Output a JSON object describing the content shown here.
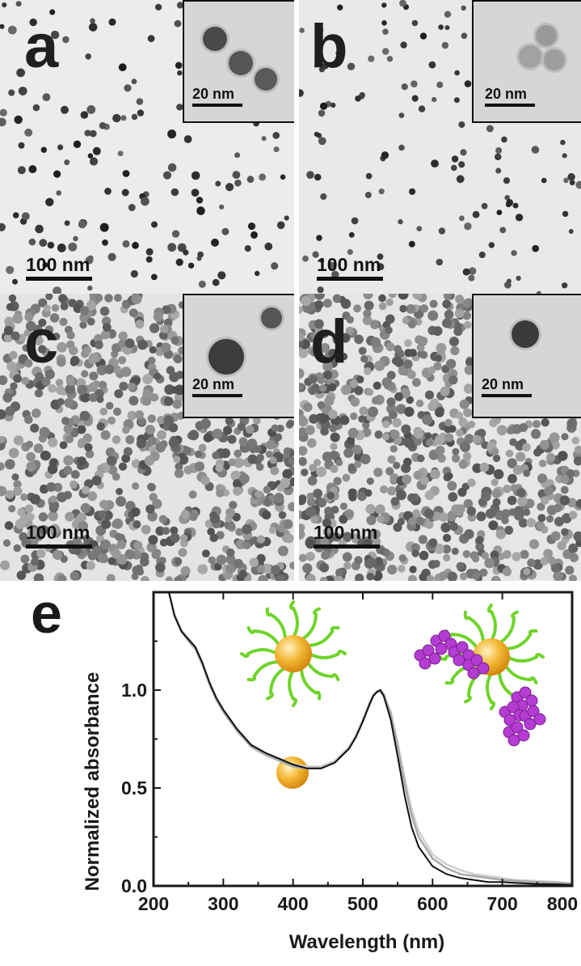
{
  "panels": [
    {
      "letter": "a",
      "scale_label": "100 nm",
      "inset_scale_label": "20 nm"
    },
    {
      "letter": "b",
      "scale_label": "100 nm",
      "inset_scale_label": "20 nm"
    },
    {
      "letter": "c",
      "scale_label": "100 nm",
      "inset_scale_label": "20 nm"
    },
    {
      "letter": "d",
      "scale_label": "100 nm",
      "inset_scale_label": "20 nm"
    }
  ],
  "chart_data": {
    "type": "line",
    "panel_letter": "e",
    "xlabel": "Wavelength (nm)",
    "ylabel": "Normalized absorbance",
    "xlim": [
      200,
      800
    ],
    "ylim": [
      0.0,
      1.5
    ],
    "xticks": [
      200,
      300,
      400,
      500,
      600,
      700,
      800
    ],
    "yticks": [
      0.0,
      0.5,
      1.0
    ],
    "xtick_labels": [
      "200",
      "300",
      "400",
      "500",
      "600",
      "700",
      "800"
    ],
    "ytick_labels": [
      "0.0",
      "0.5",
      "1.0"
    ],
    "grid": false,
    "colors": {
      "series_1": "#111111",
      "series_2": "#a9a9a9",
      "series_3": "#cfcfcf",
      "particle": "#f2b632",
      "ligand": "#6fd42a",
      "protein": "#b43cd2"
    },
    "series": [
      {
        "x": [
          222,
          230,
          240,
          250,
          260,
          270,
          280,
          290,
          300,
          320,
          340,
          360,
          380,
          400,
          420,
          440,
          460,
          480,
          490,
          500,
          510,
          515,
          520,
          525,
          530,
          540,
          550,
          560,
          570,
          580,
          600,
          620,
          640,
          660,
          680,
          700,
          720,
          750,
          780,
          800
        ],
        "y": [
          1.5,
          1.38,
          1.3,
          1.26,
          1.22,
          1.14,
          1.04,
          0.96,
          0.9,
          0.8,
          0.72,
          0.68,
          0.65,
          0.62,
          0.6,
          0.6,
          0.63,
          0.7,
          0.76,
          0.84,
          0.93,
          0.97,
          0.99,
          1.0,
          0.97,
          0.85,
          0.66,
          0.46,
          0.3,
          0.2,
          0.1,
          0.06,
          0.04,
          0.03,
          0.02,
          0.02,
          0.015,
          0.01,
          0.008,
          0.005
        ]
      },
      {
        "x": [
          222,
          230,
          240,
          250,
          260,
          270,
          280,
          290,
          300,
          320,
          340,
          360,
          380,
          400,
          420,
          440,
          460,
          480,
          490,
          500,
          510,
          515,
          520,
          525,
          530,
          540,
          550,
          560,
          570,
          580,
          600,
          620,
          640,
          660,
          680,
          700,
          720,
          750,
          780,
          800
        ],
        "y": [
          1.5,
          1.38,
          1.3,
          1.25,
          1.21,
          1.13,
          1.03,
          0.95,
          0.89,
          0.79,
          0.71,
          0.67,
          0.64,
          0.61,
          0.6,
          0.6,
          0.63,
          0.7,
          0.76,
          0.84,
          0.93,
          0.97,
          0.99,
          1.0,
          0.98,
          0.88,
          0.71,
          0.52,
          0.36,
          0.25,
          0.14,
          0.09,
          0.06,
          0.05,
          0.04,
          0.03,
          0.025,
          0.02,
          0.015,
          0.01
        ]
      },
      {
        "x": [
          222,
          230,
          240,
          250,
          260,
          270,
          280,
          290,
          300,
          320,
          340,
          360,
          380,
          400,
          420,
          440,
          460,
          480,
          490,
          500,
          510,
          515,
          520,
          525,
          530,
          540,
          550,
          560,
          570,
          580,
          600,
          620,
          640,
          660,
          680,
          700,
          720,
          750,
          780,
          800
        ],
        "y": [
          1.5,
          1.39,
          1.31,
          1.26,
          1.22,
          1.14,
          1.04,
          0.96,
          0.9,
          0.8,
          0.72,
          0.68,
          0.65,
          0.62,
          0.61,
          0.61,
          0.64,
          0.71,
          0.77,
          0.85,
          0.94,
          0.98,
          0.995,
          0.99,
          0.97,
          0.89,
          0.73,
          0.55,
          0.39,
          0.28,
          0.16,
          0.11,
          0.08,
          0.06,
          0.05,
          0.04,
          0.03,
          0.025,
          0.02,
          0.015
        ]
      }
    ]
  }
}
